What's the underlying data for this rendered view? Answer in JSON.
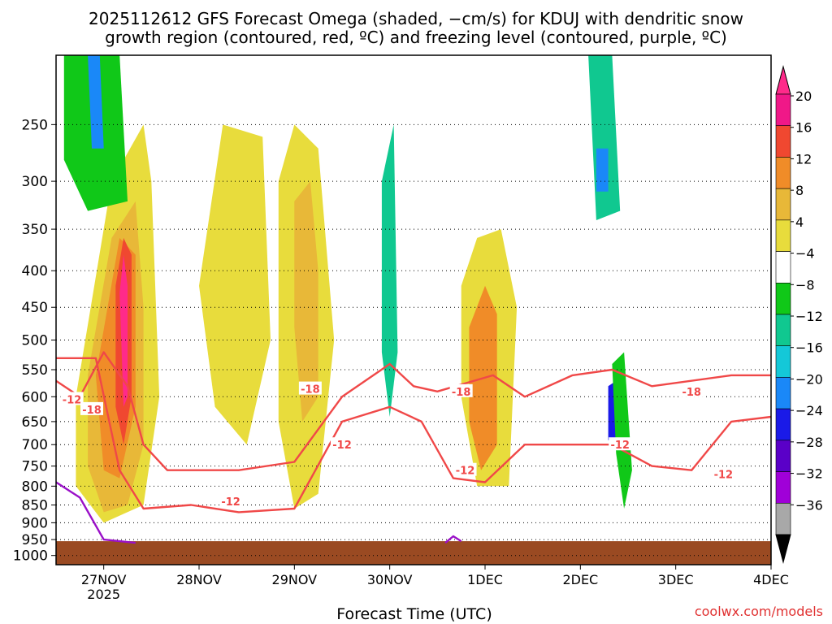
{
  "title_line1": "2025112612 GFS Forecast Omega (shaded, −cm/s) for KDUJ with dendritic snow",
  "title_line2": "growth region (contoured, red, ºC) and freezing level (contoured, purple, ºC)",
  "xlabel": "Forecast Time (UTC)",
  "credit": "coolwx.com/models",
  "colors": {
    "snow_contour": "#f04848",
    "freezing_contour": "#9a10c8",
    "ground": "#9a4a22",
    "grid": "#000000"
  },
  "chart_data": {
    "type": "heatmap",
    "x": {
      "ticks": [
        {
          "label": "27NOV",
          "sub": "2025",
          "hour": 12
        },
        {
          "label": "28NOV",
          "hour": 36
        },
        {
          "label": "29NOV",
          "hour": 60
        },
        {
          "label": "30NOV",
          "hour": 84
        },
        {
          "label": "1DEC",
          "hour": 108
        },
        {
          "label": "2DEC",
          "hour": 132
        },
        {
          "label": "3DEC",
          "hour": 156
        },
        {
          "label": "4DEC",
          "hour": 180
        }
      ],
      "range_hours": [
        0,
        180
      ]
    },
    "y": {
      "unit": "hPa",
      "ticks": [
        250,
        300,
        350,
        400,
        450,
        500,
        550,
        600,
        650,
        700,
        750,
        800,
        850,
        900,
        950,
        1000
      ],
      "range": [
        200,
        1030
      ],
      "scale": "log",
      "surface_pressure": 955
    },
    "colorbar": {
      "labels": [
        "20",
        "16",
        "12",
        "8",
        "4",
        "−4",
        "−8",
        "−12",
        "−16",
        "−20",
        "−24",
        "−28",
        "−32",
        "−36"
      ],
      "levels": [
        -36,
        -32,
        -28,
        -24,
        -20,
        -16,
        -12,
        -8,
        -4,
        4,
        8,
        12,
        16,
        20
      ],
      "colors": [
        "#a8a8a8",
        "#a000d8",
        "#5a00c8",
        "#1a1ae8",
        "#1a88f8",
        "#14c8d8",
        "#10c890",
        "#10c818",
        "#ffffff",
        "#e8dc3c",
        "#e8b838",
        "#f08c28",
        "#f04830",
        "#f01888"
      ],
      "extend_high": "#ff2a8a",
      "extend_low": "#000000"
    },
    "shaded_regions": [
      {
        "name": "w-ascent-27nov-yellow",
        "level": 4,
        "polygon": [
          [
            5,
            600
          ],
          [
            14,
            300
          ],
          [
            22,
            250
          ],
          [
            24,
            300
          ],
          [
            26,
            600
          ],
          [
            22,
            850
          ],
          [
            12,
            900
          ],
          [
            5,
            800
          ]
        ]
      },
      {
        "name": "w-ascent-27nov-gold",
        "level": 8,
        "polygon": [
          [
            8,
            560
          ],
          [
            14,
            360
          ],
          [
            20,
            320
          ],
          [
            22,
            450
          ],
          [
            22,
            700
          ],
          [
            18,
            850
          ],
          [
            12,
            870
          ],
          [
            8,
            750
          ]
        ]
      },
      {
        "name": "w-ascent-27nov-orange",
        "level": 12,
        "polygon": [
          [
            10,
            560
          ],
          [
            16,
            360
          ],
          [
            20,
            380
          ],
          [
            20,
            620
          ],
          [
            16,
            780
          ],
          [
            12,
            760
          ]
        ]
      },
      {
        "name": "w-ascent-27nov-red",
        "level": 16,
        "polygon": [
          [
            15,
            420
          ],
          [
            17,
            360
          ],
          [
            19,
            380
          ],
          [
            19,
            600
          ],
          [
            17,
            700
          ],
          [
            15,
            620
          ]
        ]
      },
      {
        "name": "w-ascent-27nov-max",
        "level": 20,
        "polygon": [
          [
            16,
            430
          ],
          [
            17,
            380
          ],
          [
            18,
            420
          ],
          [
            18,
            600
          ],
          [
            17,
            620
          ]
        ]
      },
      {
        "name": "w-ascent-28nov-yellow",
        "level": 4,
        "polygon": [
          [
            36,
            420
          ],
          [
            42,
            250
          ],
          [
            52,
            260
          ],
          [
            54,
            500
          ],
          [
            48,
            700
          ],
          [
            40,
            620
          ]
        ]
      },
      {
        "name": "w-ascent-29nov-yellow",
        "level": 4,
        "polygon": [
          [
            56,
            300
          ],
          [
            60,
            250
          ],
          [
            66,
            270
          ],
          [
            70,
            500
          ],
          [
            66,
            820
          ],
          [
            60,
            860
          ],
          [
            56,
            650
          ]
        ]
      },
      {
        "name": "w-ascent-29nov-gold",
        "level": 8,
        "polygon": [
          [
            60,
            320
          ],
          [
            64,
            300
          ],
          [
            66,
            400
          ],
          [
            66,
            600
          ],
          [
            62,
            650
          ],
          [
            60,
            480
          ]
        ]
      },
      {
        "name": "w-ascent-1dec-yellow",
        "level": 4,
        "polygon": [
          [
            102,
            420
          ],
          [
            106,
            360
          ],
          [
            112,
            350
          ],
          [
            116,
            450
          ],
          [
            114,
            800
          ],
          [
            106,
            800
          ],
          [
            102,
            600
          ]
        ]
      },
      {
        "name": "w-ascent-1dec-orange",
        "level": 12,
        "polygon": [
          [
            104,
            480
          ],
          [
            108,
            420
          ],
          [
            111,
            460
          ],
          [
            111,
            700
          ],
          [
            107,
            760
          ],
          [
            104,
            650
          ]
        ]
      },
      {
        "name": "w-descent-26nov-green",
        "level": -8,
        "polygon": [
          [
            2,
            200
          ],
          [
            16,
            200
          ],
          [
            18,
            320
          ],
          [
            8,
            330
          ],
          [
            2,
            280
          ]
        ]
      },
      {
        "name": "w-descent-26nov-blue",
        "level": -20,
        "polygon": [
          [
            8,
            200
          ],
          [
            11,
            200
          ],
          [
            12,
            270
          ],
          [
            9,
            270
          ]
        ]
      },
      {
        "name": "w-descent-30nov-cyan",
        "level": -12,
        "polygon": [
          [
            82,
            300
          ],
          [
            85,
            250
          ],
          [
            86,
            520
          ],
          [
            84,
            640
          ],
          [
            82,
            520
          ]
        ]
      },
      {
        "name": "w-descent-2dec-cyan",
        "level": -12,
        "polygon": [
          [
            134,
            200
          ],
          [
            140,
            200
          ],
          [
            142,
            330
          ],
          [
            136,
            340
          ]
        ]
      },
      {
        "name": "w-descent-2dec-blue",
        "level": -20,
        "polygon": [
          [
            136,
            270
          ],
          [
            139,
            270
          ],
          [
            139,
            310
          ],
          [
            136,
            310
          ]
        ]
      },
      {
        "name": "w-descent-2dec-low",
        "level": -24,
        "polygon": [
          [
            139,
            580
          ],
          [
            141,
            570
          ],
          [
            141,
            690
          ],
          [
            139,
            690
          ]
        ]
      },
      {
        "name": "w-descent-2dec-green",
        "level": -8,
        "polygon": [
          [
            140,
            540
          ],
          [
            143,
            520
          ],
          [
            145,
            760
          ],
          [
            143,
            860
          ],
          [
            141,
            720
          ]
        ]
      }
    ],
    "contours": [
      {
        "name": "snow-growth-upper",
        "label": "-18",
        "color": "#f04848",
        "points": [
          [
            0,
            570
          ],
          [
            6,
            600
          ],
          [
            12,
            520
          ],
          [
            18,
            580
          ],
          [
            22,
            700
          ],
          [
            28,
            760
          ],
          [
            46,
            760
          ],
          [
            60,
            740
          ],
          [
            72,
            600
          ],
          [
            84,
            540
          ],
          [
            90,
            580
          ],
          [
            96,
            590
          ],
          [
            110,
            560
          ],
          [
            118,
            600
          ],
          [
            130,
            560
          ],
          [
            140,
            550
          ],
          [
            150,
            580
          ],
          [
            170,
            560
          ],
          [
            180,
            560
          ]
        ]
      },
      {
        "name": "snow-growth-lower",
        "label": "-12",
        "color": "#f04848",
        "points": [
          [
            0,
            530
          ],
          [
            10,
            530
          ],
          [
            16,
            760
          ],
          [
            22,
            860
          ],
          [
            34,
            850
          ],
          [
            46,
            870
          ],
          [
            60,
            860
          ],
          [
            72,
            650
          ],
          [
            84,
            620
          ],
          [
            92,
            650
          ],
          [
            100,
            780
          ],
          [
            108,
            790
          ],
          [
            118,
            700
          ],
          [
            130,
            700
          ],
          [
            140,
            700
          ],
          [
            150,
            750
          ],
          [
            160,
            760
          ],
          [
            170,
            650
          ],
          [
            180,
            640
          ]
        ]
      },
      {
        "name": "freezing-level",
        "label": "0",
        "color": "#9a10c8",
        "points": [
          [
            0,
            790
          ],
          [
            6,
            830
          ],
          [
            12,
            950
          ],
          [
            20,
            960
          ]
        ]
      },
      {
        "name": "freezing-level-2",
        "label": "0",
        "color": "#9a10c8",
        "points": [
          [
            98,
            960
          ],
          [
            100,
            940
          ],
          [
            102,
            955
          ]
        ]
      }
    ],
    "contour_labels": [
      {
        "text": "-12",
        "hour": 4,
        "pressure": 605
      },
      {
        "text": "-18",
        "hour": 9,
        "pressure": 625
      },
      {
        "text": "-18",
        "hour": 64,
        "pressure": 585
      },
      {
        "text": "-12",
        "hour": 72,
        "pressure": 700
      },
      {
        "text": "-18",
        "hour": 102,
        "pressure": 590
      },
      {
        "text": "-12",
        "hour": 103,
        "pressure": 760
      },
      {
        "text": "-12",
        "hour": 142,
        "pressure": 700
      },
      {
        "text": "-18",
        "hour": 160,
        "pressure": 590
      },
      {
        "text": "-12",
        "hour": 168,
        "pressure": 770
      },
      {
        "text": "-12",
        "hour": 44,
        "pressure": 840
      }
    ]
  }
}
